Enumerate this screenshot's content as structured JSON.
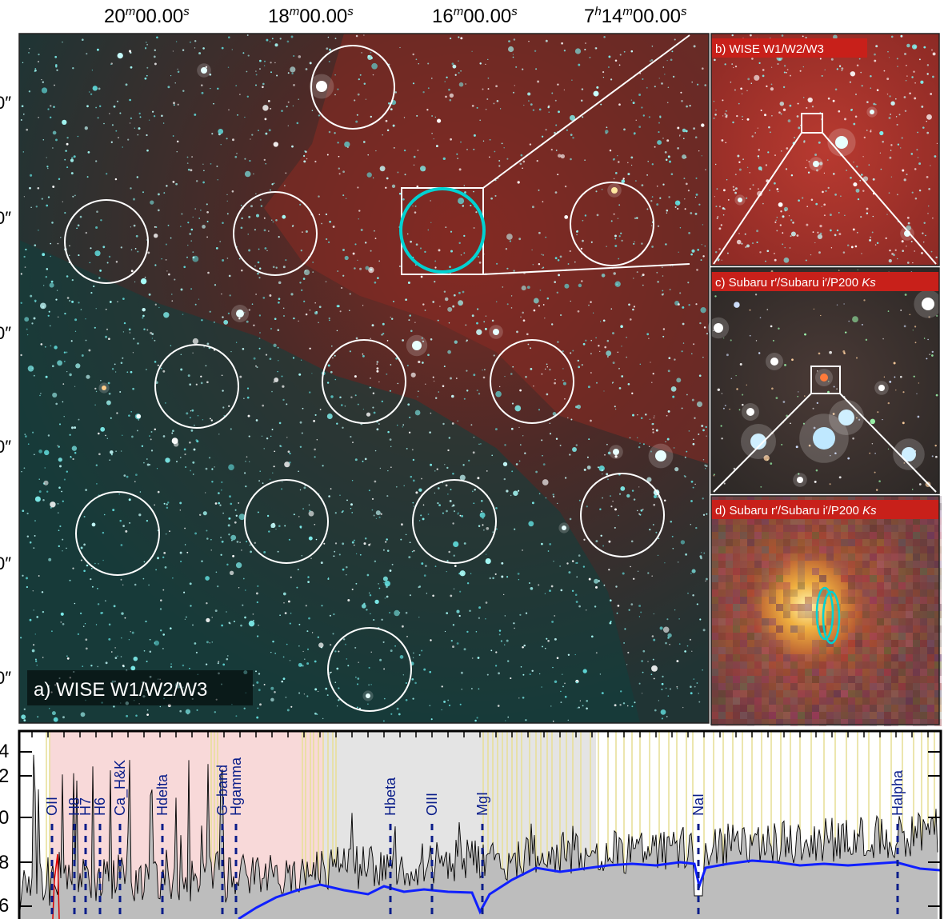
{
  "ra_ticks": [
    "20",
    "00.00",
    "18",
    "00.00",
    "16",
    "00.00",
    "7",
    "14",
    "00.00"
  ],
  "ra_labels": [
    {
      "min": "20",
      "sec": "00.00"
    },
    {
      "min": "18",
      "sec": "00.00"
    },
    {
      "min": "16",
      "sec": "00.00"
    },
    {
      "hour": "7",
      "min": "14",
      "sec": "00.00"
    }
  ],
  "dec_tick_suffix": "0″",
  "panels": {
    "a": {
      "label": "a) WISE W1/W2/W3"
    },
    "b": {
      "label": "b) WISE W1/W2/W3"
    },
    "c": {
      "label": "c) Subaru r′/Subaru i′/P200 ",
      "label_italic": "Ks"
    },
    "d": {
      "label": "d) Subaru r′/Subaru i′/P200 ",
      "label_italic": "Ks"
    }
  },
  "spectrum": {
    "y_ticks": [
      "4",
      "2",
      "0",
      "8",
      "6"
    ],
    "lines": [
      "OII",
      "H8",
      "H7",
      "H6",
      "Ca_H&K",
      "Hdelta",
      "G–band",
      "Hgamma",
      "Hbeta",
      "OIII",
      "MgI",
      "NaI",
      "Halpha"
    ]
  },
  "colors": {
    "circle": "#ffffff",
    "highlight_circle": "#00d2d2",
    "spectrum_model": "#1020ff",
    "line_marker": "#0b1e8a",
    "telluric": "#e8df9a",
    "shade_pink": "#f8d9d9",
    "shade_grey": "#e4e4e4"
  }
}
